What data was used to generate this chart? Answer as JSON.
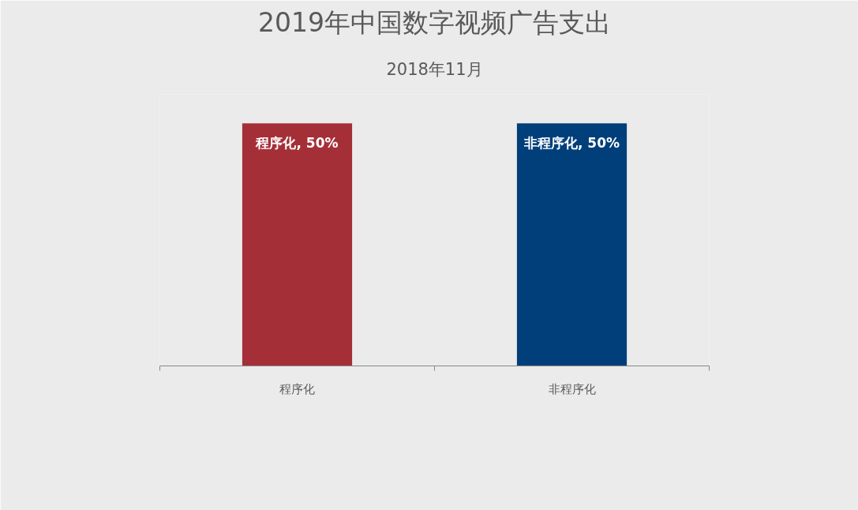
{
  "chart_data": {
    "type": "bar",
    "title": "2019年中国数字视频广告支出",
    "subtitle": "2018年11月",
    "categories": [
      "程序化",
      "非程序化"
    ],
    "values": [
      50,
      50
    ],
    "colors": [
      "#a52f37",
      "#003f7a"
    ],
    "value_labels": [
      "程序化, 50%",
      "非程序化, 50%"
    ],
    "ylim": [
      0,
      56
    ],
    "tick_labels": "x",
    "grid": false
  }
}
